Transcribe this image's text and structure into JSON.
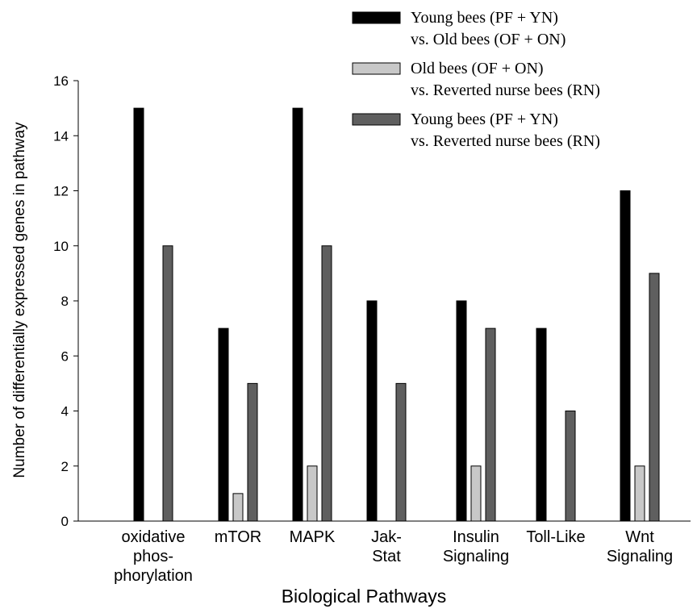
{
  "chart_data": {
    "type": "bar",
    "title": "",
    "xlabel": "Biological Pathways",
    "ylabel": "Number of differentially expressed genes in pathway",
    "ylim": [
      0,
      16
    ],
    "yticks": [
      "0",
      "2",
      "4",
      "6",
      "8",
      "10",
      "12",
      "14",
      "16"
    ],
    "categories": [
      [
        "oxidative",
        "phos-",
        "phorylation"
      ],
      [
        "mTOR"
      ],
      [
        "MAPK"
      ],
      [
        "Jak-",
        "Stat"
      ],
      [
        "Insulin",
        "Signaling"
      ],
      [
        "Toll-Like"
      ],
      [
        "Wnt",
        "Signaling"
      ]
    ],
    "series": [
      {
        "name": [
          "Young bees (PF + YN)",
          "vs. Old bees (OF + ON)"
        ],
        "color": "#000000",
        "values": [
          15,
          7,
          15,
          8,
          8,
          7,
          12
        ]
      },
      {
        "name": [
          "Old bees (OF + ON)",
          "vs. Reverted nurse bees (RN)"
        ],
        "color": "#c8c8c8",
        "values": [
          0,
          1,
          2,
          0,
          2,
          0,
          2
        ]
      },
      {
        "name": [
          "Young bees (PF + YN)",
          "vs. Reverted nurse bees (RN)"
        ],
        "color": "#5f5f5f",
        "values": [
          10,
          5,
          10,
          5,
          7,
          4,
          9
        ]
      }
    ],
    "legend_position": "top-right",
    "grid": false
  }
}
